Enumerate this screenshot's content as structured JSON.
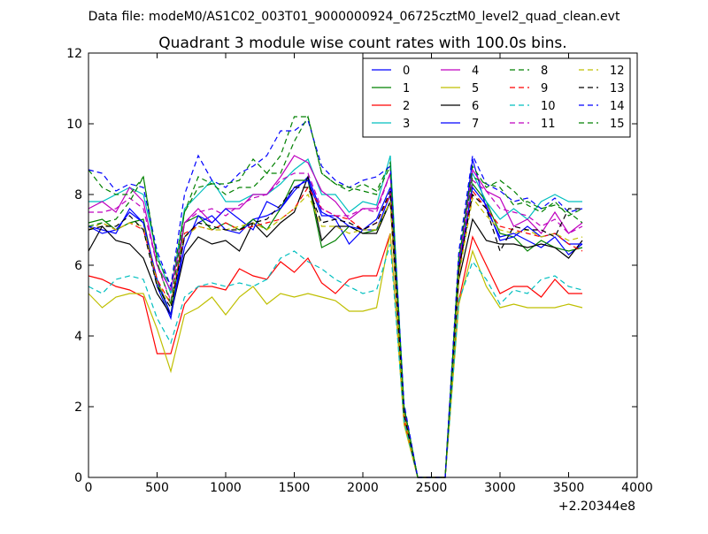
{
  "suptitle": "Data file: modeM0/AS1C02_003T01_9000000924_06725cztM0_level2_quad_clean.evt",
  "chart_data": {
    "type": "line",
    "title": "Quadrant 3 module wise count rates with 100.0s bins.",
    "xlabel": "",
    "ylabel": "",
    "x_offset_label": "+2.20344e8",
    "xlim": [
      0,
      4000
    ],
    "ylim": [
      0,
      12
    ],
    "xticks": [
      0,
      500,
      1000,
      1500,
      2000,
      2500,
      3000,
      3500,
      4000
    ],
    "yticks": [
      0,
      2,
      4,
      6,
      8,
      10,
      12
    ],
    "grid": false,
    "legend": {
      "placement": "top-right",
      "columns": 4
    },
    "x": [
      0,
      100,
      200,
      300,
      400,
      500,
      600,
      700,
      800,
      900,
      1000,
      1100,
      1200,
      1300,
      1400,
      1500,
      1600,
      1700,
      1800,
      1900,
      2000,
      2100,
      2200,
      2300,
      2400,
      2500,
      2600,
      2700,
      2800,
      2900,
      3000,
      3100,
      3200,
      3300,
      3400,
      3500,
      3600
    ],
    "series": [
      {
        "name": "0",
        "color": "#0000ff",
        "dash": "solid",
        "values": [
          7.1,
          7.0,
          6.9,
          7.6,
          7.2,
          5.4,
          4.5,
          6.8,
          7.2,
          7.4,
          7.0,
          6.9,
          7.3,
          7.4,
          7.6,
          8.1,
          8.5,
          7.5,
          7.3,
          6.6,
          7.0,
          7.0,
          8.0,
          2.0,
          0.0,
          0.0,
          0.0,
          6.0,
          9.0,
          7.6,
          6.8,
          6.9,
          6.7,
          6.5,
          6.8,
          6.3,
          6.6
        ]
      },
      {
        "name": "1",
        "color": "#008000",
        "dash": "solid",
        "values": [
          7.2,
          7.3,
          7.0,
          7.2,
          7.3,
          5.5,
          4.6,
          7.2,
          7.4,
          7.0,
          7.2,
          7.0,
          7.3,
          7.0,
          7.6,
          8.4,
          8.4,
          6.5,
          6.7,
          7.1,
          6.9,
          7.0,
          7.8,
          1.8,
          0.0,
          0.0,
          0.0,
          5.8,
          8.3,
          7.8,
          6.9,
          6.8,
          6.4,
          6.7,
          6.5,
          6.4,
          6.5
        ]
      },
      {
        "name": "2",
        "color": "#ff0000",
        "dash": "solid",
        "values": [
          5.7,
          5.6,
          5.4,
          5.3,
          5.1,
          3.5,
          3.5,
          4.9,
          5.4,
          5.4,
          5.3,
          5.9,
          5.7,
          5.6,
          6.1,
          5.8,
          6.2,
          5.5,
          5.2,
          5.6,
          5.7,
          5.7,
          6.9,
          1.6,
          0.0,
          0.0,
          0.0,
          5.0,
          6.8,
          6.0,
          5.2,
          5.4,
          5.4,
          5.1,
          5.6,
          5.2,
          5.2
        ]
      },
      {
        "name": "3",
        "color": "#00bfbf",
        "dash": "solid",
        "values": [
          7.8,
          7.8,
          8.0,
          8.2,
          8.0,
          6.3,
          5.2,
          7.6,
          8.0,
          8.4,
          7.8,
          7.8,
          8.0,
          8.0,
          8.3,
          8.7,
          9.0,
          8.0,
          8.0,
          7.5,
          7.8,
          7.7,
          9.1,
          2.0,
          0.0,
          0.0,
          0.0,
          6.2,
          8.6,
          7.8,
          7.3,
          7.6,
          7.3,
          7.8,
          8.0,
          7.8,
          7.8
        ]
      },
      {
        "name": "4",
        "color": "#bf00bf",
        "dash": "solid",
        "values": [
          7.6,
          7.8,
          7.5,
          8.2,
          7.8,
          6.0,
          5.3,
          7.2,
          7.6,
          7.2,
          7.6,
          7.6,
          8.0,
          8.0,
          8.5,
          9.1,
          8.9,
          8.1,
          7.8,
          7.3,
          7.6,
          7.6,
          8.6,
          1.9,
          0.0,
          0.0,
          0.0,
          6.1,
          8.7,
          8.1,
          7.9,
          7.1,
          7.3,
          6.9,
          7.5,
          6.9,
          7.2
        ]
      },
      {
        "name": "5",
        "color": "#bfbf00",
        "dash": "solid",
        "values": [
          5.2,
          4.8,
          5.1,
          5.2,
          5.2,
          4.2,
          3.0,
          4.6,
          4.8,
          5.1,
          4.6,
          5.1,
          5.4,
          4.9,
          5.2,
          5.1,
          5.2,
          5.1,
          5.0,
          4.7,
          4.7,
          4.8,
          6.9,
          1.5,
          0.0,
          0.0,
          0.0,
          4.9,
          6.4,
          5.4,
          4.8,
          4.9,
          4.8,
          4.8,
          4.8,
          4.9,
          4.8
        ]
      },
      {
        "name": "6",
        "color": "#000000",
        "dash": "solid",
        "values": [
          6.4,
          7.1,
          6.7,
          6.6,
          6.2,
          5.2,
          4.6,
          6.3,
          6.8,
          6.6,
          6.7,
          6.4,
          7.2,
          6.8,
          7.2,
          7.5,
          8.5,
          6.7,
          7.1,
          7.1,
          6.9,
          6.9,
          7.8,
          1.8,
          0.0,
          0.0,
          0.0,
          5.6,
          7.3,
          6.7,
          6.6,
          6.6,
          6.5,
          6.6,
          6.5,
          6.2,
          6.7
        ]
      },
      {
        "name": "7",
        "color": "#0000ff",
        "dash": "solid",
        "values": [
          7.1,
          6.9,
          7.0,
          7.5,
          7.2,
          5.6,
          4.6,
          6.5,
          7.4,
          7.2,
          7.6,
          7.3,
          7.0,
          7.8,
          7.6,
          8.2,
          8.4,
          7.4,
          7.4,
          7.1,
          7.0,
          7.3,
          8.2,
          1.9,
          0.0,
          0.0,
          0.0,
          6.0,
          8.2,
          7.7,
          6.7,
          6.8,
          7.1,
          6.8,
          6.9,
          6.6,
          6.6
        ]
      },
      {
        "name": "8",
        "color": "#008000",
        "dash": "dashed",
        "values": [
          8.7,
          8.2,
          8.0,
          8.0,
          8.5,
          6.2,
          5.4,
          7.5,
          8.2,
          8.3,
          8.0,
          8.2,
          8.2,
          8.6,
          9.1,
          10.2,
          10.2,
          8.6,
          8.3,
          8.1,
          8.3,
          8.1,
          8.9,
          2.0,
          0.0,
          0.0,
          0.0,
          6.3,
          8.8,
          8.2,
          8.4,
          8.1,
          7.7,
          7.5,
          7.8,
          7.4,
          7.6
        ]
      },
      {
        "name": "9",
        "color": "#ff0000",
        "dash": "dashed",
        "values": [
          7.0,
          7.2,
          7.0,
          7.2,
          7.0,
          5.6,
          4.9,
          6.9,
          7.1,
          7.0,
          7.2,
          7.0,
          7.1,
          7.2,
          7.3,
          7.6,
          8.2,
          7.6,
          7.4,
          7.3,
          7.0,
          7.2,
          8.0,
          1.7,
          0.0,
          0.0,
          0.0,
          5.8,
          8.1,
          7.6,
          7.1,
          7.0,
          6.9,
          6.8,
          6.9,
          6.6,
          6.4
        ]
      },
      {
        "name": "10",
        "color": "#00bfbf",
        "dash": "dashed",
        "values": [
          5.4,
          5.2,
          5.6,
          5.7,
          5.6,
          4.5,
          3.8,
          5.1,
          5.4,
          5.5,
          5.4,
          5.5,
          5.4,
          5.6,
          6.2,
          6.4,
          6.1,
          5.9,
          5.6,
          5.4,
          5.2,
          5.3,
          6.6,
          1.6,
          0.0,
          0.0,
          0.0,
          5.0,
          6.1,
          5.6,
          4.9,
          5.3,
          5.2,
          5.6,
          5.7,
          5.4,
          5.3
        ]
      },
      {
        "name": "11",
        "color": "#bf00bf",
        "dash": "dashed",
        "values": [
          7.5,
          7.5,
          7.6,
          7.9,
          7.6,
          6.0,
          5.0,
          7.2,
          7.5,
          7.6,
          7.4,
          7.7,
          7.9,
          8.0,
          8.4,
          8.6,
          8.6,
          7.6,
          7.4,
          7.4,
          7.6,
          7.5,
          8.6,
          1.9,
          0.0,
          0.0,
          0.0,
          6.1,
          8.4,
          8.1,
          7.6,
          7.5,
          7.4,
          7.1,
          7.3,
          6.9,
          7.1
        ]
      },
      {
        "name": "12",
        "color": "#bfbf00",
        "dash": "dashed",
        "values": [
          7.0,
          7.2,
          7.0,
          7.2,
          7.1,
          5.5,
          4.9,
          6.8,
          7.1,
          7.0,
          7.0,
          7.1,
          7.2,
          7.0,
          7.3,
          7.6,
          8.0,
          7.1,
          7.1,
          6.9,
          7.0,
          7.0,
          7.8,
          1.8,
          0.0,
          0.0,
          0.0,
          5.7,
          7.9,
          7.4,
          7.0,
          6.9,
          7.0,
          6.8,
          6.9,
          6.7,
          6.8
        ]
      },
      {
        "name": "13",
        "color": "#000000",
        "dash": "dashed",
        "values": [
          7.0,
          7.1,
          7.1,
          7.4,
          7.0,
          5.4,
          4.8,
          6.8,
          7.2,
          7.1,
          7.0,
          7.0,
          7.2,
          7.3,
          7.7,
          8.2,
          8.2,
          7.2,
          7.3,
          7.2,
          7.0,
          7.2,
          8.1,
          1.8,
          0.0,
          0.0,
          0.0,
          5.9,
          8.0,
          7.6,
          6.4,
          7.1,
          7.0,
          7.0,
          6.8,
          7.6,
          7.6
        ]
      },
      {
        "name": "14",
        "color": "#0000ff",
        "dash": "dashed",
        "values": [
          8.7,
          8.6,
          8.1,
          8.3,
          8.2,
          6.4,
          5.4,
          8.0,
          9.1,
          8.4,
          8.2,
          8.6,
          8.8,
          9.1,
          9.8,
          9.8,
          10.1,
          8.8,
          8.4,
          8.2,
          8.4,
          8.5,
          8.8,
          2.1,
          0.0,
          0.0,
          0.0,
          6.4,
          9.1,
          8.3,
          8.1,
          7.8,
          7.9,
          7.6,
          7.9,
          7.5,
          7.6
        ]
      },
      {
        "name": "15",
        "color": "#008000",
        "dash": "dashed",
        "values": [
          7.1,
          7.2,
          7.3,
          7.8,
          8.5,
          6.1,
          4.9,
          7.5,
          8.5,
          8.3,
          8.3,
          8.4,
          9.0,
          8.6,
          8.6,
          9.5,
          10.2,
          8.6,
          8.3,
          8.2,
          8.1,
          8.0,
          8.8,
          2.0,
          0.0,
          0.0,
          0.0,
          6.2,
          8.5,
          8.3,
          8.2,
          7.7,
          7.8,
          7.6,
          7.7,
          7.5,
          7.2
        ]
      }
    ]
  }
}
